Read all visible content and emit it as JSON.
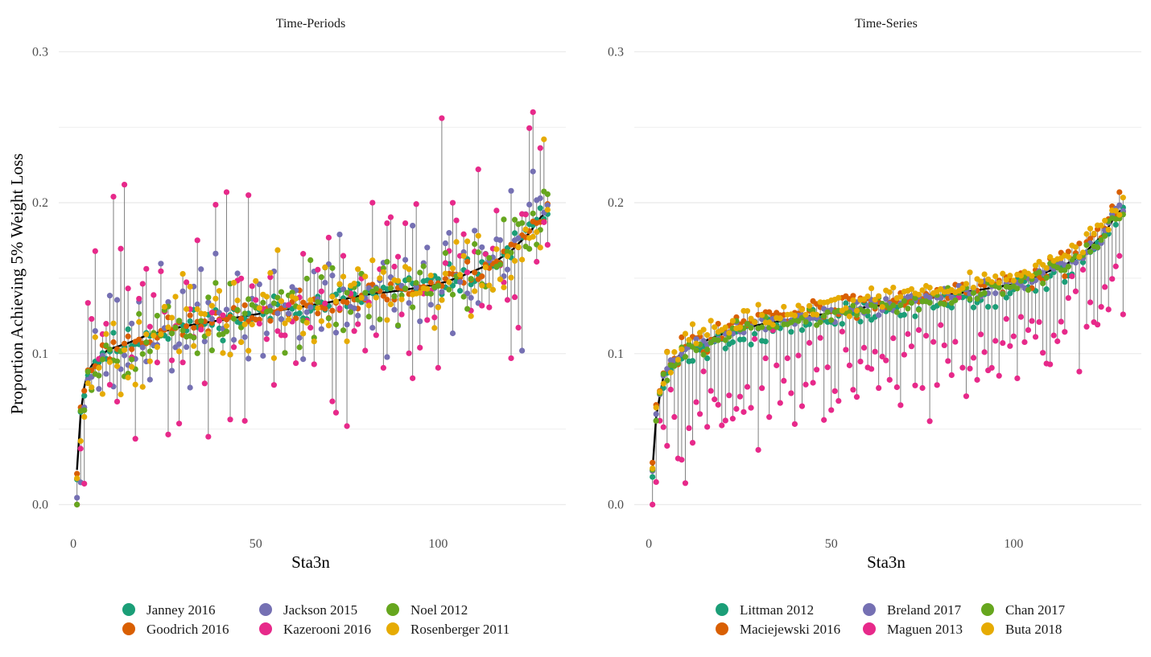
{
  "ylabel": "Proportion Achieving 5% Weight Loss",
  "colors": {
    "teal": "#1b9e77",
    "orange": "#d95f02",
    "purple": "#7570b3",
    "pink": "#e7298a",
    "green": "#66a61e",
    "gold": "#e6ab02",
    "stem": "#7f7f7f",
    "ref_line": "#000000",
    "grid": "#ebebeb"
  },
  "chart_data": [
    {
      "type": "scatter",
      "title": "Time-Periods",
      "xlabel": "Sta3n",
      "ylabel": "Proportion Achieving 5% Weight Loss",
      "xlim": [
        -4,
        135
      ],
      "ylim": [
        -0.012,
        0.305
      ],
      "xticks": [
        0,
        50,
        100
      ],
      "yticks": [
        0.0,
        0.1,
        0.2,
        0.3
      ],
      "ytick_labels": [
        "0.0",
        "0.1",
        "0.2",
        "0.3"
      ],
      "grid": true,
      "legend_position": "bottom",
      "n_sites": 130,
      "reference_line": {
        "x": [
          1,
          2,
          3,
          4,
          5,
          8,
          10,
          15,
          20,
          30,
          40,
          50,
          60,
          70,
          80,
          90,
          100,
          105,
          110,
          115,
          120,
          125,
          128,
          130
        ],
        "y": [
          0.023,
          0.06,
          0.078,
          0.088,
          0.092,
          0.1,
          0.103,
          0.107,
          0.112,
          0.118,
          0.122,
          0.126,
          0.13,
          0.134,
          0.139,
          0.142,
          0.146,
          0.15,
          0.155,
          0.16,
          0.168,
          0.18,
          0.19,
          0.195
        ]
      },
      "series": [
        {
          "name": "Janney 2016",
          "color": "#1b9e77",
          "spread": 0.005,
          "seed": 11
        },
        {
          "name": "Goodrich 2016",
          "color": "#d95f02",
          "spread": 0.004,
          "seed": 23
        },
        {
          "name": "Jackson 2015",
          "color": "#7570b3",
          "spread": 0.02,
          "seed": 37
        },
        {
          "name": "Kazerooni 2016",
          "color": "#e7298a",
          "spread": 0.035,
          "seed": 41
        },
        {
          "name": "Noel 2012",
          "color": "#66a61e",
          "spread": 0.012,
          "seed": 53
        },
        {
          "name": "Rosenberger 2011",
          "color": "#e6ab02",
          "spread": 0.015,
          "seed": 67
        }
      ],
      "highlighted_points": [
        {
          "series": "Kazerooni 2016",
          "x": 1,
          "y": 0.0
        },
        {
          "series": "Kazerooni 2016",
          "x": 11,
          "y": 0.204
        },
        {
          "series": "Kazerooni 2016",
          "x": 14,
          "y": 0.212
        },
        {
          "series": "Kazerooni 2016",
          "x": 42,
          "y": 0.207
        },
        {
          "series": "Kazerooni 2016",
          "x": 48,
          "y": 0.205
        },
        {
          "series": "Kazerooni 2016",
          "x": 75,
          "y": 0.052
        },
        {
          "series": "Kazerooni 2016",
          "x": 82,
          "y": 0.2
        },
        {
          "series": "Kazerooni 2016",
          "x": 101,
          "y": 0.256
        },
        {
          "series": "Kazerooni 2016",
          "x": 126,
          "y": 0.26
        },
        {
          "series": "Rosenberger 2011",
          "x": 129,
          "y": 0.242
        },
        {
          "series": "Jackson 2015",
          "x": 123,
          "y": 0.102
        }
      ]
    },
    {
      "type": "scatter",
      "title": "Time-Series",
      "xlabel": "Sta3n",
      "ylabel": "",
      "xlim": [
        -4,
        135
      ],
      "ylim": [
        -0.012,
        0.305
      ],
      "xticks": [
        0,
        50,
        100
      ],
      "yticks": [
        0.0,
        0.1,
        0.2,
        0.3
      ],
      "ytick_labels": [
        "0.0",
        "0.1",
        "0.2",
        "0.3"
      ],
      "grid": true,
      "legend_position": "bottom",
      "n_sites": 130,
      "reference_line": {
        "x": [
          1,
          2,
          3,
          4,
          5,
          8,
          10,
          15,
          20,
          30,
          40,
          50,
          60,
          70,
          80,
          90,
          100,
          105,
          110,
          115,
          120,
          125,
          128,
          130
        ],
        "y": [
          0.023,
          0.058,
          0.072,
          0.085,
          0.09,
          0.098,
          0.103,
          0.108,
          0.113,
          0.119,
          0.123,
          0.127,
          0.131,
          0.134,
          0.138,
          0.142,
          0.146,
          0.15,
          0.155,
          0.16,
          0.168,
          0.18,
          0.192,
          0.196
        ]
      },
      "series": [
        {
          "name": "Littman 2012",
          "color": "#1b9e77",
          "offset": -0.004,
          "spread": 0.004,
          "seed": 71
        },
        {
          "name": "Maciejewski 2016",
          "color": "#d95f02",
          "offset": 0.003,
          "spread": 0.004,
          "seed": 83
        },
        {
          "name": "Breland 2017",
          "color": "#7570b3",
          "offset": 0.0,
          "spread": 0.003,
          "seed": 89
        },
        {
          "name": "Maguen 2013",
          "color": "#e7298a",
          "offset": -0.045,
          "spread": 0.015,
          "seed": 97
        },
        {
          "name": "Chan 2017",
          "color": "#66a61e",
          "offset": -0.001,
          "spread": 0.003,
          "seed": 101
        },
        {
          "name": "Buta 2018",
          "color": "#e6ab02",
          "offset": 0.005,
          "spread": 0.004,
          "seed": 113
        }
      ],
      "highlighted_points": [
        {
          "series": "Maguen 2013",
          "x": 1,
          "y": 0.0
        },
        {
          "series": "Maguen 2013",
          "x": 130,
          "y": 0.126
        },
        {
          "series": "Maciejewski 2016",
          "x": 129,
          "y": 0.207
        }
      ]
    }
  ]
}
